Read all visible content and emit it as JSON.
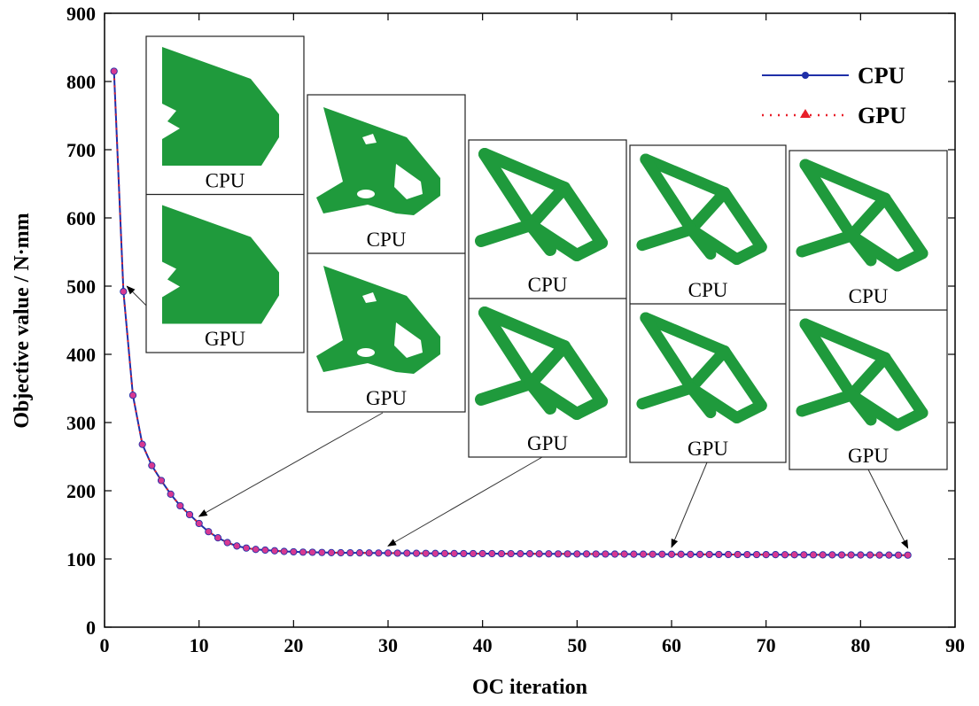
{
  "chart_data": {
    "type": "line",
    "title": "",
    "xlabel": "OC iteration",
    "ylabel": "Objective value / N·mm",
    "xlim": [
      0,
      90
    ],
    "ylim": [
      0,
      900
    ],
    "xticks": [
      0,
      10,
      20,
      30,
      40,
      50,
      60,
      70,
      80,
      90
    ],
    "yticks": [
      0,
      100,
      200,
      300,
      400,
      500,
      600,
      700,
      800,
      900
    ],
    "legend_position": "top-right",
    "x": [
      1,
      2,
      3,
      4,
      5,
      6,
      7,
      8,
      9,
      10,
      11,
      12,
      13,
      14,
      15,
      16,
      17,
      18,
      19,
      20,
      21,
      22,
      23,
      24,
      25,
      26,
      27,
      28,
      29,
      30,
      31,
      32,
      33,
      34,
      35,
      36,
      37,
      38,
      39,
      40,
      41,
      42,
      43,
      44,
      45,
      46,
      47,
      48,
      49,
      50,
      51,
      52,
      53,
      54,
      55,
      56,
      57,
      58,
      59,
      60,
      61,
      62,
      63,
      64,
      65,
      66,
      67,
      68,
      69,
      70,
      71,
      72,
      73,
      74,
      75,
      76,
      77,
      78,
      79,
      80,
      81,
      82,
      83,
      84,
      85
    ],
    "series": [
      {
        "name": "CPU",
        "color": "#1f2fa8",
        "marker": "circle",
        "values": [
          815,
          492,
          340,
          268,
          237,
          215,
          195,
          178,
          165,
          152,
          140,
          131,
          124,
          119,
          116,
          114,
          113,
          112,
          111,
          110.5,
          110,
          109.8,
          109.5,
          109.3,
          109.1,
          109,
          108.9,
          108.8,
          108.7,
          108.6,
          108.5,
          108.4,
          108.3,
          108.2,
          108.1,
          108,
          108,
          107.9,
          107.9,
          107.8,
          107.8,
          107.7,
          107.7,
          107.6,
          107.6,
          107.5,
          107.5,
          107.4,
          107.4,
          107.3,
          107.3,
          107.2,
          107.2,
          107.1,
          107.1,
          107,
          107,
          106.9,
          106.9,
          106.8,
          106.8,
          106.7,
          106.7,
          106.6,
          106.6,
          106.5,
          106.5,
          106.4,
          106.4,
          106.3,
          106.3,
          106.2,
          106.2,
          106.1,
          106.1,
          106,
          106,
          105.9,
          105.9,
          105.8,
          105.8,
          105.7,
          105.7,
          105.6,
          105.6
        ]
      },
      {
        "name": "GPU",
        "color": "#e8202a",
        "marker": "triangle",
        "values": [
          815,
          492,
          340,
          268,
          237,
          215,
          195,
          178,
          165,
          152,
          140,
          131,
          124,
          119,
          116,
          114,
          113,
          112,
          111,
          110.5,
          110,
          109.8,
          109.5,
          109.3,
          109.1,
          109,
          108.9,
          108.8,
          108.7,
          108.6,
          108.5,
          108.4,
          108.3,
          108.2,
          108.1,
          108,
          108,
          107.9,
          107.9,
          107.8,
          107.8,
          107.7,
          107.7,
          107.6,
          107.6,
          107.5,
          107.5,
          107.4,
          107.4,
          107.3,
          107.3,
          107.2,
          107.2,
          107.1,
          107.1,
          107,
          107,
          106.9,
          106.9,
          106.8,
          106.8,
          106.7,
          106.7,
          106.6,
          106.6,
          106.5,
          106.5,
          106.4,
          106.4,
          106.3,
          106.3,
          106.2,
          106.2,
          106.1,
          106.1,
          106,
          106,
          105.9,
          105.9,
          105.8,
          105.8,
          105.7,
          105.7,
          105.6,
          105.6
        ]
      }
    ],
    "annotations": [
      {
        "iteration": 2,
        "value": 492,
        "top_label": "CPU",
        "bottom_label": "GPU"
      },
      {
        "iteration": 10,
        "value": 152,
        "top_label": "CPU",
        "bottom_label": "GPU"
      },
      {
        "iteration": 30,
        "value": 108.6,
        "top_label": "CPU",
        "bottom_label": "GPU"
      },
      {
        "iteration": 60,
        "value": 106.8,
        "top_label": "CPU",
        "bottom_label": "GPU"
      },
      {
        "iteration": 85,
        "value": 105.6,
        "top_label": "CPU",
        "bottom_label": "GPU"
      }
    ]
  }
}
